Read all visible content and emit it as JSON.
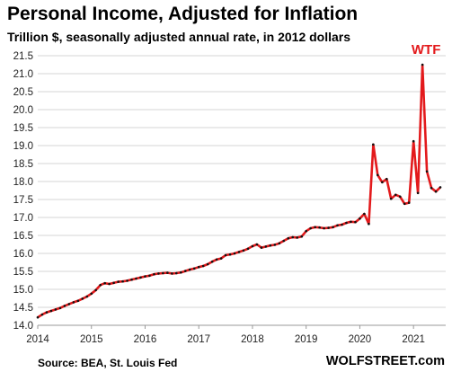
{
  "chart_data": {
    "type": "line",
    "title": "Personal Income, Adjusted for Inflation",
    "subtitle": "Trillion $, seasonally adjusted annual rate, in 2012 dollars",
    "source": "Source: BEA, St. Louis Fed",
    "credit": "WOLFSTREET.com",
    "annotation": "WTF",
    "ylim": [
      14.0,
      21.5
    ],
    "yticks": [
      "14.0",
      "14.5",
      "15.0",
      "15.5",
      "16.0",
      "16.5",
      "17.0",
      "17.5",
      "18.0",
      "18.5",
      "19.0",
      "19.5",
      "20.0",
      "20.5",
      "21.0",
      "21.5"
    ],
    "xlim": [
      2014,
      2021.6
    ],
    "xticks": [
      "2014",
      "2015",
      "2016",
      "2017",
      "2018",
      "2019",
      "2020",
      "2021"
    ],
    "grid": true,
    "line_color": "#e31a1c",
    "marker_color": "#111111",
    "series": [
      {
        "x": [
          2014.0,
          2014.083,
          2014.167,
          2014.25,
          2014.333,
          2014.417,
          2014.5,
          2014.583,
          2014.667,
          2014.75,
          2014.833,
          2014.917,
          2015.0,
          2015.083,
          2015.167,
          2015.25,
          2015.333,
          2015.417,
          2015.5,
          2015.583,
          2015.667,
          2015.75,
          2015.833,
          2015.917,
          2016.0,
          2016.083,
          2016.167,
          2016.25,
          2016.333,
          2016.417,
          2016.5,
          2016.583,
          2016.667,
          2016.75,
          2016.833,
          2016.917,
          2017.0,
          2017.083,
          2017.167,
          2017.25,
          2017.333,
          2017.417,
          2017.5,
          2017.583,
          2017.667,
          2017.75,
          2017.833,
          2017.917,
          2018.0,
          2018.083,
          2018.167,
          2018.25,
          2018.333,
          2018.417,
          2018.5,
          2018.583,
          2018.667,
          2018.75,
          2018.833,
          2018.917,
          2019.0,
          2019.083,
          2019.167,
          2019.25,
          2019.333,
          2019.417,
          2019.5,
          2019.583,
          2019.667,
          2019.75,
          2019.833,
          2019.917,
          2020.0,
          2020.083,
          2020.167,
          2020.25,
          2020.333,
          2020.417,
          2020.5,
          2020.583,
          2020.667,
          2020.75,
          2020.833,
          2020.917,
          2021.0,
          2021.083,
          2021.167,
          2021.25,
          2021.333,
          2021.417,
          2021.5
        ],
        "values": [
          14.22,
          14.3,
          14.36,
          14.4,
          14.44,
          14.48,
          14.54,
          14.59,
          14.64,
          14.68,
          14.74,
          14.8,
          14.88,
          14.98,
          15.12,
          15.17,
          15.15,
          15.18,
          15.21,
          15.22,
          15.24,
          15.27,
          15.3,
          15.33,
          15.36,
          15.38,
          15.42,
          15.44,
          15.45,
          15.46,
          15.44,
          15.45,
          15.47,
          15.51,
          15.55,
          15.58,
          15.62,
          15.65,
          15.7,
          15.77,
          15.83,
          15.86,
          15.95,
          15.97,
          16.0,
          16.04,
          16.08,
          16.13,
          16.2,
          16.25,
          16.16,
          16.19,
          16.22,
          16.24,
          16.28,
          16.35,
          16.42,
          16.45,
          16.44,
          16.47,
          16.62,
          16.7,
          16.73,
          16.72,
          16.7,
          16.71,
          16.73,
          16.78,
          16.8,
          16.85,
          16.88,
          16.87,
          16.97,
          17.1,
          16.82,
          19.03,
          18.18,
          17.98,
          18.07,
          17.52,
          17.63,
          17.58,
          17.38,
          17.41,
          19.12,
          17.68,
          21.25,
          18.28,
          17.82,
          17.72,
          17.84
        ]
      }
    ]
  }
}
